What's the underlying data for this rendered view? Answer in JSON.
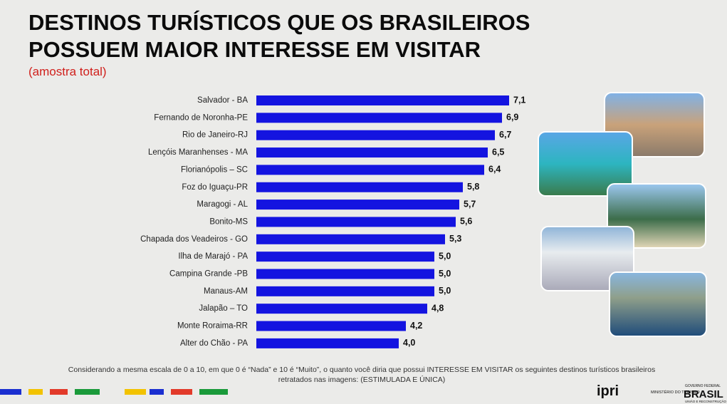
{
  "chart_data": {
    "type": "bar",
    "orientation": "horizontal",
    "title_lines": [
      "DESTINOS TURÍSTICOS QUE OS BRASILEIROS",
      "POSSUEM MAIOR INTERESSE EM VISITAR"
    ],
    "subtitle": "(amostra total)",
    "categories": [
      "Salvador - BA",
      "Fernando de Noronha-PE",
      "Rio de Janeiro-RJ",
      "Lençóis Maranhenses - MA",
      "Florianópolis – SC",
      "Foz do Iguaçu-PR",
      "Maragogi - AL",
      "Bonito-MS",
      "Chapada dos Veadeiros - GO",
      "Ilha de Marajó - PA",
      "Campina Grande -PB",
      "Manaus-AM",
      "Jalapão – TO",
      "Monte Roraima-RR",
      "Alter do Chão - PA"
    ],
    "values": [
      7.1,
      6.9,
      6.7,
      6.5,
      6.4,
      5.8,
      5.7,
      5.6,
      5.3,
      5.0,
      5.0,
      5.0,
      4.8,
      4.2,
      4.0
    ],
    "value_labels": [
      "7,1",
      "6,9",
      "6,7",
      "6,5",
      "6,4",
      "5,8",
      "5,7",
      "5,6",
      "5,3",
      "5,0",
      "5,0",
      "5,0",
      "4,8",
      "4,2",
      "4,0"
    ],
    "color": "#1414e0",
    "note_lines": [
      "Considerando a mesma escala de 0 a 10, em que 0 é “Nada” e 10 é “Muito”, o quanto você diria que possui INTERESSE EM VISITAR os seguintes destinos turísticos brasileiros",
      "retratados nas imagens: (ESTIMULADA E ÚNICA)"
    ]
  },
  "logos": {
    "ipri": "ipri",
    "ministry": "MINISTÉRIO DO TURISMO",
    "gov": "GOVERNO FEDERAL",
    "brasil": "BRASIL",
    "slogan": "UNIÃO E RECONSTRUÇÃO"
  }
}
